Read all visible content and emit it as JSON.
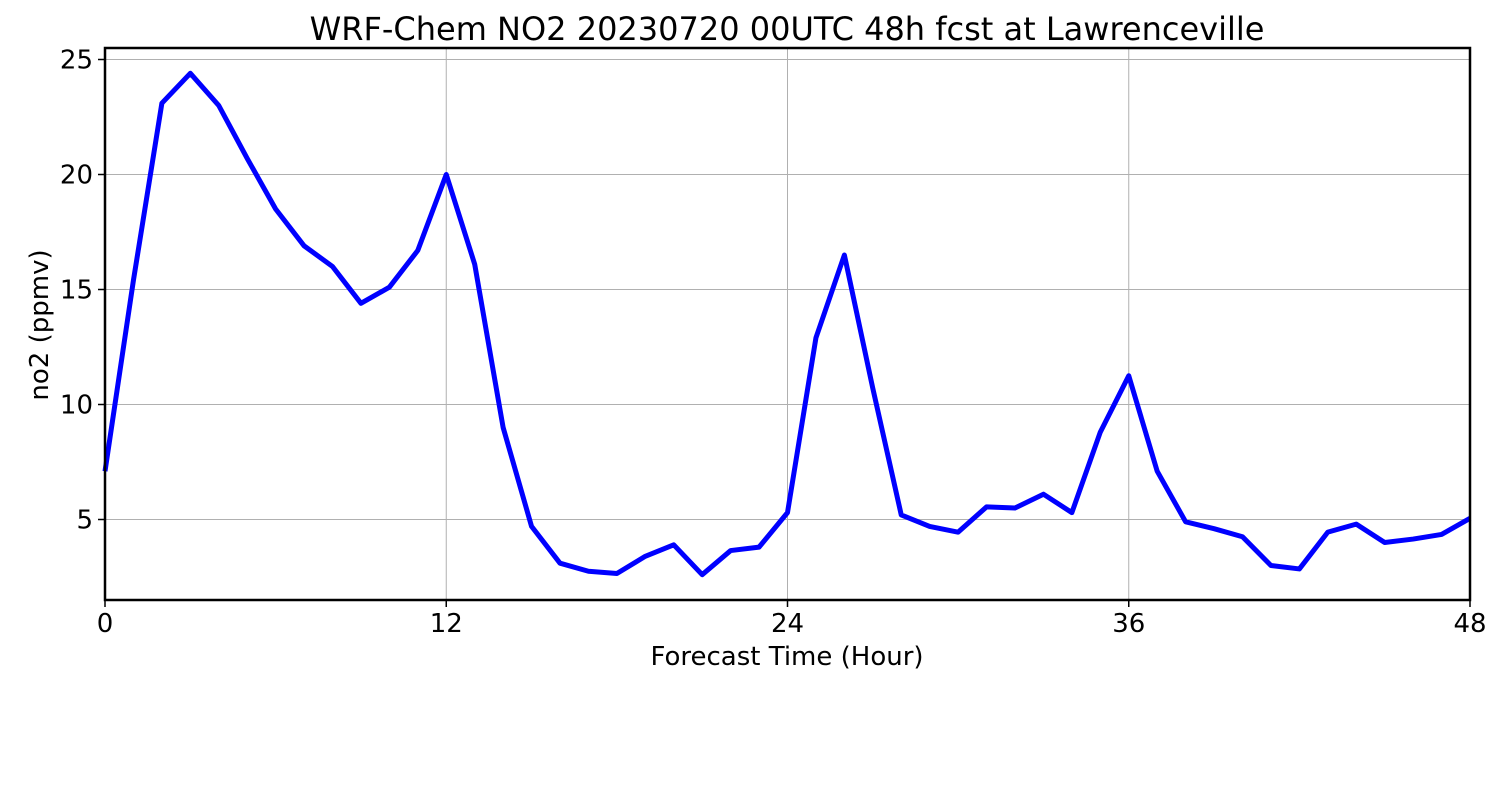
{
  "chart_data": {
    "type": "line",
    "title": "WRF-Chem NO2  20230720 00UTC 48h fcst at Lawrenceville",
    "xlabel": "Forecast Time (Hour)",
    "ylabel": "no2  (ppmv)",
    "xlim": [
      0,
      48
    ],
    "ylim": [
      1.5,
      25.5
    ],
    "xticks": [
      0,
      12,
      24,
      36,
      48
    ],
    "yticks": [
      5,
      10,
      15,
      20,
      25
    ],
    "grid": true,
    "series": [
      {
        "color": "#0000ff",
        "x": [
          0,
          1,
          2,
          3,
          4,
          5,
          6,
          7,
          8,
          9,
          10,
          11,
          12,
          13,
          14,
          15,
          16,
          17,
          18,
          19,
          20,
          21,
          22,
          23,
          24,
          25,
          26,
          27,
          28,
          29,
          30,
          31,
          32,
          33,
          34,
          35,
          36,
          37,
          38,
          39,
          40,
          41,
          42,
          43,
          44,
          45,
          46,
          47,
          48
        ],
        "values": [
          7.1,
          15.4,
          23.1,
          24.4,
          23.0,
          20.7,
          18.5,
          16.9,
          16.0,
          14.4,
          15.1,
          16.7,
          20.0,
          16.1,
          9.0,
          4.7,
          3.1,
          2.75,
          2.65,
          3.4,
          3.9,
          2.6,
          3.65,
          3.8,
          5.3,
          12.9,
          16.5,
          10.7,
          5.2,
          4.7,
          4.45,
          5.55,
          5.5,
          6.1,
          5.3,
          8.8,
          11.25,
          7.1,
          4.9,
          4.6,
          4.25,
          3.0,
          2.85,
          4.45,
          4.8,
          4.0,
          4.15,
          4.35,
          5.05
        ]
      }
    ]
  }
}
